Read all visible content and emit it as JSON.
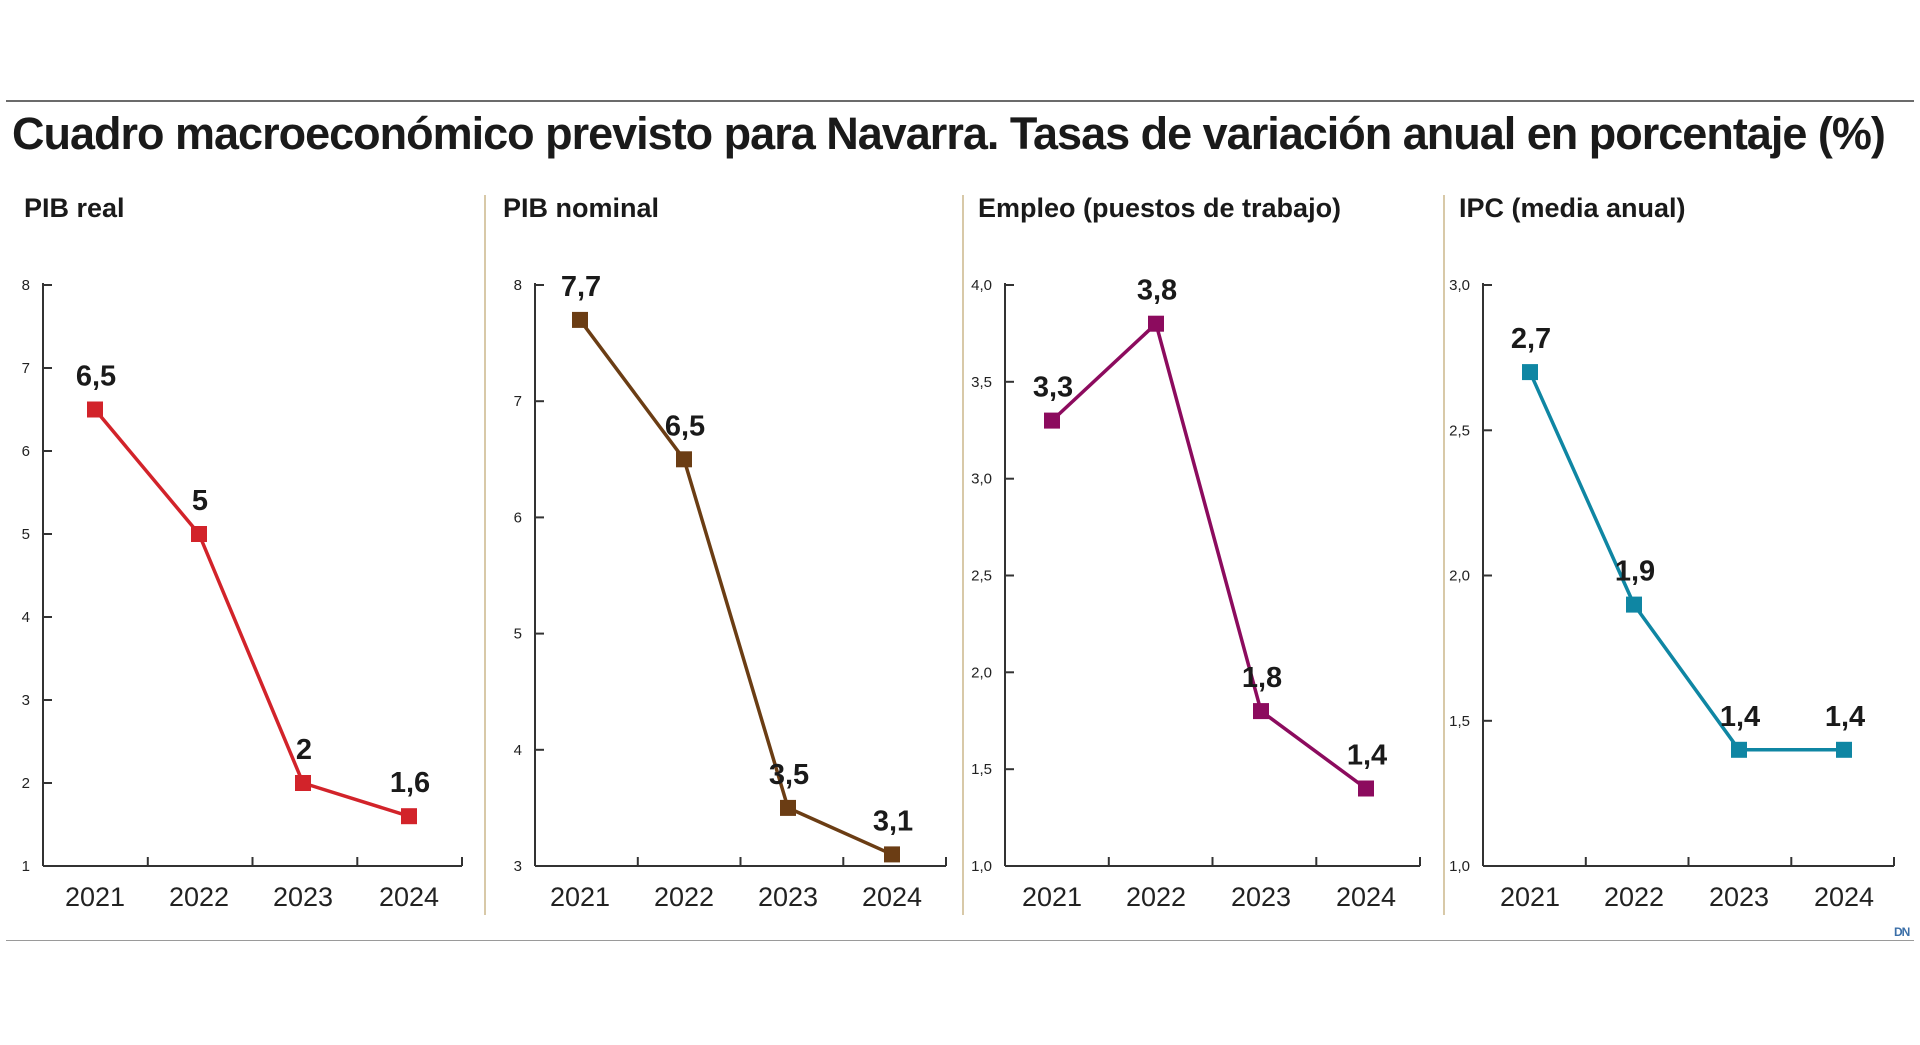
{
  "title": "Cuadro macroeconómico previsto para Navarra. Tasas de variación anual en porcentaje (%)",
  "logo_text": "DN",
  "chart_data": [
    {
      "type": "line",
      "title": "PIB real",
      "categories": [
        "2021",
        "2022",
        "2023",
        "2024"
      ],
      "values": [
        6.5,
        5,
        2,
        1.6
      ],
      "data_labels": [
        "6,5",
        "5",
        "2",
        "1,6"
      ],
      "ylim": [
        1,
        8
      ],
      "yticks": [
        1,
        2,
        3,
        4,
        5,
        6,
        7,
        8
      ],
      "ytick_labels": [
        "1",
        "2",
        "3",
        "4",
        "5",
        "6",
        "7",
        "8"
      ],
      "color": "#d2232a",
      "grid": false,
      "xlabel": "",
      "ylabel": ""
    },
    {
      "type": "line",
      "title": "PIB nominal",
      "categories": [
        "2021",
        "2022",
        "2023",
        "2024"
      ],
      "values": [
        7.7,
        6.5,
        3.5,
        3.1
      ],
      "data_labels": [
        "7,7",
        "6,5",
        "3,5",
        "3,1"
      ],
      "ylim": [
        3,
        8
      ],
      "yticks": [
        3,
        4,
        5,
        6,
        7,
        8
      ],
      "ytick_labels": [
        "3",
        "4",
        "5",
        "6",
        "7",
        "8"
      ],
      "color": "#6b3d14",
      "grid": false,
      "xlabel": "",
      "ylabel": ""
    },
    {
      "type": "line",
      "title": "Empleo (puestos de trabajo)",
      "categories": [
        "2021",
        "2022",
        "2023",
        "2024"
      ],
      "values": [
        3.3,
        3.8,
        1.8,
        1.4
      ],
      "data_labels": [
        "3,3",
        "3,8",
        "1,8",
        "1,4"
      ],
      "ylim": [
        1,
        4
      ],
      "yticks": [
        1,
        1.5,
        2,
        2.5,
        3,
        3.5,
        4
      ],
      "ytick_labels": [
        "1,0",
        "1,5",
        "2,0",
        "2,5",
        "3,0",
        "3,5",
        "4,0"
      ],
      "color": "#8c0b5e",
      "grid": false,
      "xlabel": "",
      "ylabel": ""
    },
    {
      "type": "line",
      "title": "IPC (media anual)",
      "categories": [
        "2021",
        "2022",
        "2023",
        "2024"
      ],
      "values": [
        2.7,
        1.9,
        1.4,
        1.4
      ],
      "data_labels": [
        "2,7",
        "1,9",
        "1,4",
        "1,4"
      ],
      "ylim": [
        1,
        3
      ],
      "yticks": [
        1,
        1.5,
        2,
        2.5,
        3
      ],
      "ytick_labels": [
        "1,0",
        "1,5",
        "2,0",
        "2,5",
        "3,0"
      ],
      "color": "#0f86a3",
      "grid": false,
      "xlabel": "",
      "ylabel": ""
    }
  ]
}
